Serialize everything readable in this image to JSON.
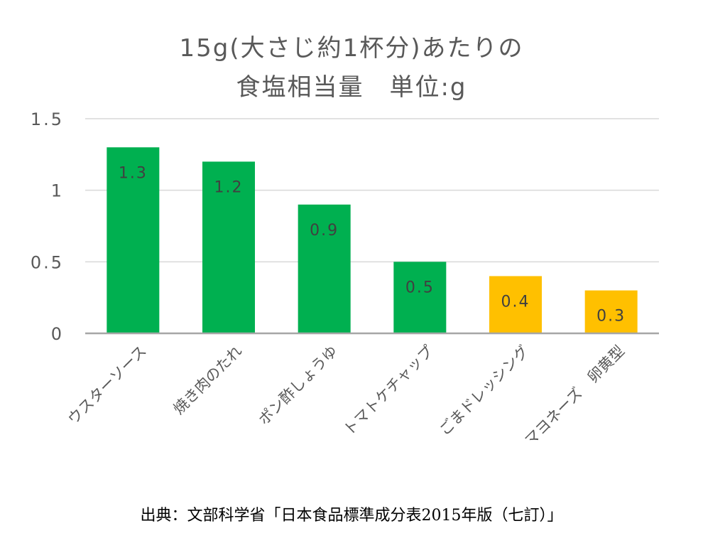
{
  "chart_data": {
    "type": "bar",
    "title_lines": [
      "15g(大さじ約1杯分)あたりの",
      "食塩相当量　単位:g"
    ],
    "categories": [
      "ウスターソース",
      "焼き肉のたれ",
      "ポン酢しょうゆ",
      "トマトケチャップ",
      "ごまドレッシング",
      "マヨネーズ　卵黄型"
    ],
    "values": [
      1.3,
      1.2,
      0.9,
      0.5,
      0.4,
      0.3
    ],
    "data_labels": [
      "1.3",
      "1.2",
      "0.9",
      "0.5",
      "0.4",
      "0.3"
    ],
    "bar_colors": [
      "#00b050",
      "#00b050",
      "#00b050",
      "#00b050",
      "#ffc000",
      "#ffc000"
    ],
    "ylim": [
      0,
      1.5
    ],
    "yticks": [
      0,
      0.5,
      1,
      1.5
    ],
    "ytick_labels": [
      "0",
      "0.5",
      "1",
      "1.5"
    ],
    "grid": true,
    "xlabel": "",
    "ylabel": ""
  },
  "source_note": "出典：文部科学省「日本食品標準成分表2015年版（七訂）」"
}
